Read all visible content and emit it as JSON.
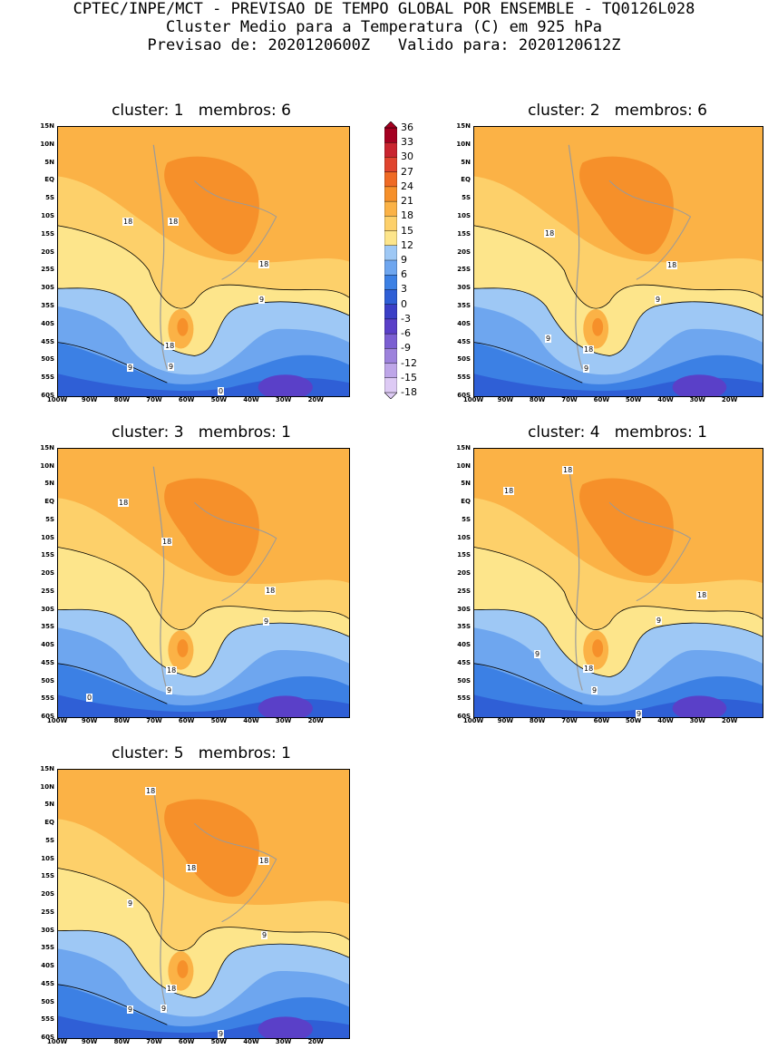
{
  "header": {
    "line1": "CPTEC/INPE/MCT - PREVISAO DE TEMPO GLOBAL POR ENSEMBLE - TQ0126L028",
    "line2": "Cluster Medio para a Temperatura (C) em 925 hPa",
    "line3": "Previsao de: 2020120600Z   Valido para: 2020120612Z"
  },
  "lat_labels": [
    "15N",
    "10N",
    "5N",
    "EQ",
    "5S",
    "10S",
    "15S",
    "20S",
    "25S",
    "30S",
    "35S",
    "40S",
    "45S",
    "50S",
    "55S",
    "60S"
  ],
  "lon_labels": [
    "100W",
    "90W",
    "80W",
    "70W",
    "60W",
    "50W",
    "40W",
    "30W",
    "20W"
  ],
  "colorbar": {
    "levels": [
      "36",
      "33",
      "30",
      "27",
      "24",
      "21",
      "18",
      "15",
      "12",
      "9",
      "6",
      "3",
      "0",
      "-3",
      "-6",
      "-9",
      "-12",
      "-15",
      "-18"
    ],
    "colors": [
      "#a50021",
      "#c9242f",
      "#e0442e",
      "#ef6a24",
      "#f6902a",
      "#fbb246",
      "#fdd06a",
      "#fde58b",
      "#9ec8f5",
      "#6ea6ef",
      "#3c80e4",
      "#2f5fd6",
      "#3b3fc6",
      "#5a40c8",
      "#7b5fd2",
      "#9d82dc",
      "#bea6e8",
      "#ddcaf4"
    ]
  },
  "panels": [
    {
      "title": "cluster: 1   membros: 6",
      "labels": [
        "18",
        "18",
        "18",
        "9",
        "18",
        "9",
        "9",
        "0"
      ]
    },
    {
      "title": "cluster: 2   membros: 6",
      "labels": [
        "18",
        "18",
        "9",
        "9",
        "18",
        "9"
      ]
    },
    {
      "title": "cluster: 3   membros: 1",
      "labels": [
        "18",
        "18",
        "18",
        "9",
        "18",
        "9",
        "0"
      ]
    },
    {
      "title": "cluster: 4   membros: 1",
      "labels": [
        "18",
        "18",
        "18",
        "9",
        "9",
        "18",
        "9",
        "9"
      ]
    },
    {
      "title": "cluster: 5   membros: 1",
      "labels": [
        "18",
        "18",
        "18",
        "9",
        "9",
        "18",
        "9",
        "9",
        "9"
      ]
    }
  ]
}
